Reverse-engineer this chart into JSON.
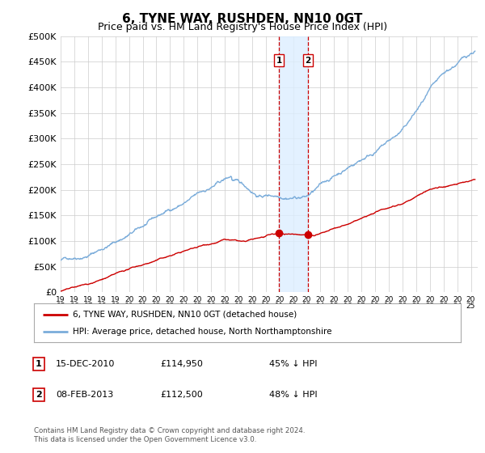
{
  "title": "6, TYNE WAY, RUSHDEN, NN10 0GT",
  "subtitle": "Price paid vs. HM Land Registry's House Price Index (HPI)",
  "legend_label_red": "6, TYNE WAY, RUSHDEN, NN10 0GT (detached house)",
  "legend_label_blue": "HPI: Average price, detached house, North Northamptonshire",
  "footer": "Contains HM Land Registry data © Crown copyright and database right 2024.\nThis data is licensed under the Open Government Licence v3.0.",
  "transactions": [
    {
      "num": 1,
      "date": "15-DEC-2010",
      "price": "£114,950",
      "pct": "45% ↓ HPI"
    },
    {
      "num": 2,
      "date": "08-FEB-2013",
      "price": "£112,500",
      "pct": "48% ↓ HPI"
    }
  ],
  "sale_dates": [
    2010.958,
    2013.1
  ],
  "sale_prices": [
    114950,
    112500
  ],
  "ylim": [
    0,
    500000
  ],
  "yticks": [
    0,
    50000,
    100000,
    150000,
    200000,
    250000,
    300000,
    350000,
    400000,
    450000,
    500000
  ],
  "xlim": [
    1995.0,
    2025.5
  ],
  "background_color": "#ffffff",
  "plot_bg_color": "#ffffff",
  "grid_color": "#cccccc",
  "red_color": "#cc0000",
  "blue_color": "#7aacda",
  "shade_color": "#ddeeff",
  "dashed_color": "#cc0000",
  "title_fontsize": 11,
  "subtitle_fontsize": 9
}
